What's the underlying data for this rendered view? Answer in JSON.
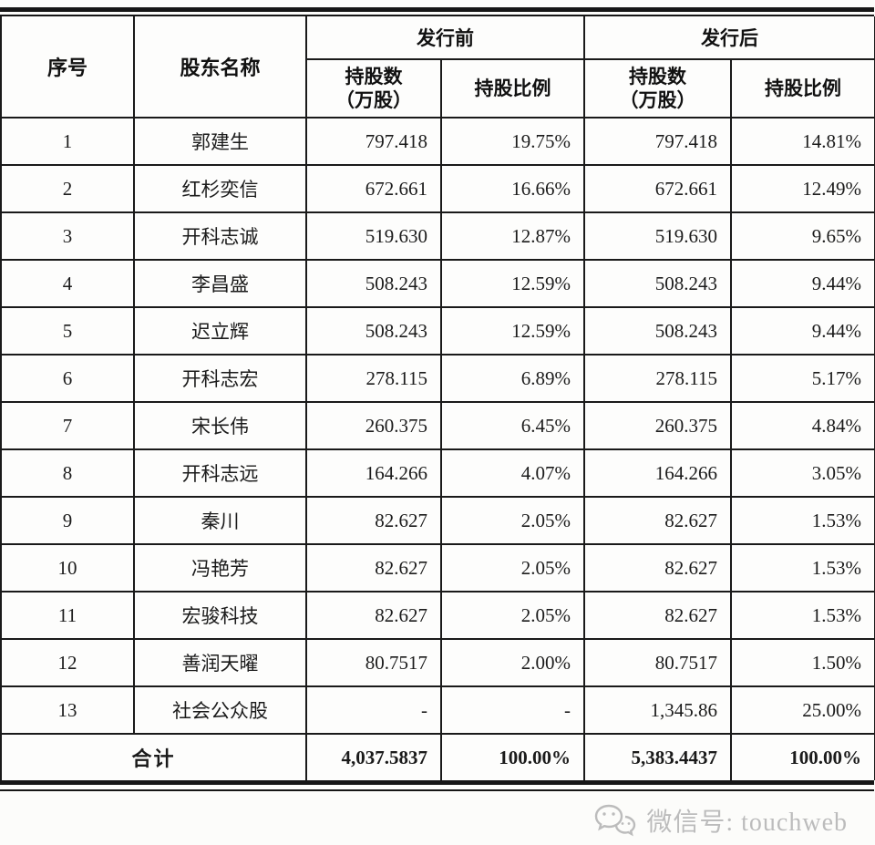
{
  "table": {
    "header": {
      "col_index": "序号",
      "col_name": "股东名称",
      "group_pre": "发行前",
      "group_post": "发行后",
      "sub_shares": "持股数\n（万股）",
      "sub_ratio": "持股比例"
    },
    "rows": [
      {
        "no": "1",
        "name": "郭建生",
        "pre_shares": "797.418",
        "pre_ratio": "19.75%",
        "post_shares": "797.418",
        "post_ratio": "14.81%"
      },
      {
        "no": "2",
        "name": "红杉奕信",
        "pre_shares": "672.661",
        "pre_ratio": "16.66%",
        "post_shares": "672.661",
        "post_ratio": "12.49%"
      },
      {
        "no": "3",
        "name": "开科志诚",
        "pre_shares": "519.630",
        "pre_ratio": "12.87%",
        "post_shares": "519.630",
        "post_ratio": "9.65%"
      },
      {
        "no": "4",
        "name": "李昌盛",
        "pre_shares": "508.243",
        "pre_ratio": "12.59%",
        "post_shares": "508.243",
        "post_ratio": "9.44%"
      },
      {
        "no": "5",
        "name": "迟立辉",
        "pre_shares": "508.243",
        "pre_ratio": "12.59%",
        "post_shares": "508.243",
        "post_ratio": "9.44%"
      },
      {
        "no": "6",
        "name": "开科志宏",
        "pre_shares": "278.115",
        "pre_ratio": "6.89%",
        "post_shares": "278.115",
        "post_ratio": "5.17%"
      },
      {
        "no": "7",
        "name": "宋长伟",
        "pre_shares": "260.375",
        "pre_ratio": "6.45%",
        "post_shares": "260.375",
        "post_ratio": "4.84%"
      },
      {
        "no": "8",
        "name": "开科志远",
        "pre_shares": "164.266",
        "pre_ratio": "4.07%",
        "post_shares": "164.266",
        "post_ratio": "3.05%"
      },
      {
        "no": "9",
        "name": "秦川",
        "pre_shares": "82.627",
        "pre_ratio": "2.05%",
        "post_shares": "82.627",
        "post_ratio": "1.53%"
      },
      {
        "no": "10",
        "name": "冯艳芳",
        "pre_shares": "82.627",
        "pre_ratio": "2.05%",
        "post_shares": "82.627",
        "post_ratio": "1.53%"
      },
      {
        "no": "11",
        "name": "宏骏科技",
        "pre_shares": "82.627",
        "pre_ratio": "2.05%",
        "post_shares": "82.627",
        "post_ratio": "1.53%"
      },
      {
        "no": "12",
        "name": "善润天曜",
        "pre_shares": "80.7517",
        "pre_ratio": "2.00%",
        "post_shares": "80.7517",
        "post_ratio": "1.50%"
      },
      {
        "no": "13",
        "name": "社会公众股",
        "pre_shares": "-",
        "pre_ratio": "-",
        "post_shares": "1,345.86",
        "post_ratio": "25.00%"
      }
    ],
    "total": {
      "label": "合计",
      "pre_shares": "4,037.5837",
      "pre_ratio": "100.00%",
      "post_shares": "5,383.4437",
      "post_ratio": "100.00%"
    }
  },
  "watermark": {
    "icon": "wechat-icon",
    "text": "微信号: touchweb"
  },
  "colors": {
    "border": "#1a1a1a",
    "text": "#1b1b1b",
    "watermark": "#bcbcbc",
    "background": "#fcfcfa"
  }
}
